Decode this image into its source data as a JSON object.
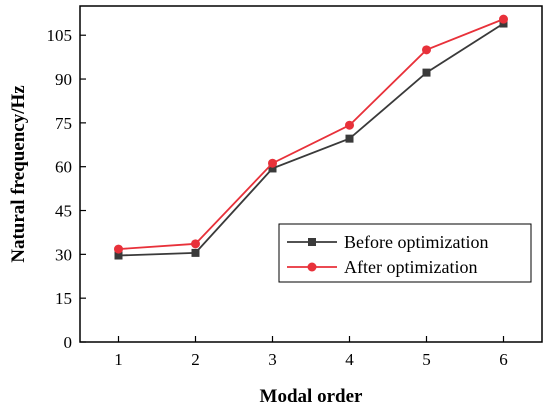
{
  "chart_data": {
    "type": "line",
    "title": "",
    "xlabel": "Modal order",
    "ylabel": "Natural frequency/Hz",
    "x": [
      1,
      2,
      3,
      4,
      5,
      6
    ],
    "xlim": [
      0.5,
      6.5
    ],
    "ylim": [
      0,
      115
    ],
    "xticks": [
      "1",
      "2",
      "3",
      "4",
      "5",
      "6"
    ],
    "yticks": [
      "0",
      "15",
      "30",
      "45",
      "60",
      "75",
      "90",
      "105"
    ],
    "grid": false,
    "legend_position": "lower-right",
    "series": [
      {
        "name": "Before optimization",
        "values": [
          29.6,
          30.5,
          59.4,
          69.6,
          92.2,
          109.0
        ],
        "color": "#3a3a3a",
        "marker": "square"
      },
      {
        "name": "After optimization",
        "values": [
          31.8,
          33.6,
          61.2,
          74.2,
          100.0,
          110.5
        ],
        "color": "#e8313a",
        "marker": "circle"
      }
    ]
  }
}
